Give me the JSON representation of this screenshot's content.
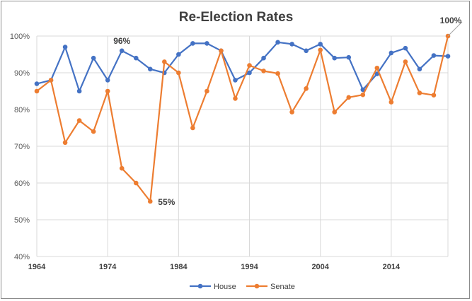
{
  "chart_data": {
    "type": "line",
    "title": "Re-Election Rates",
    "xlabel": "",
    "ylabel": "",
    "x_ticks": [
      "1964",
      "1974",
      "1984",
      "1994",
      "2004",
      "2014"
    ],
    "y_ticks": [
      "100%",
      "90%",
      "80%",
      "70%",
      "60%",
      "50%",
      "40%"
    ],
    "xlim": [
      1964,
      2022
    ],
    "ylim": [
      40,
      100
    ],
    "grid": true,
    "legend": "bottom",
    "x": [
      1964,
      1966,
      1968,
      1970,
      1972,
      1974,
      1976,
      1978,
      1980,
      1982,
      1984,
      1986,
      1988,
      1990,
      1992,
      1994,
      1996,
      1998,
      2000,
      2002,
      2004,
      2006,
      2008,
      2010,
      2012,
      2014,
      2016,
      2018,
      2020,
      2022
    ],
    "series": [
      {
        "name": "House",
        "color": "#4472c4",
        "values": [
          87,
          88,
          97,
          85,
          94,
          88,
          96,
          94,
          91,
          90,
          95,
          98,
          98,
          96,
          88,
          90,
          94,
          98.3,
          97.8,
          96,
          97.8,
          94,
          94.2,
          85.4,
          89.7,
          95.4,
          96.7,
          91,
          94.7,
          94.5
        ]
      },
      {
        "name": "Senate",
        "color": "#ed7d31",
        "values": [
          85,
          88,
          71,
          77,
          74,
          85,
          64,
          60,
          55,
          93,
          90,
          75,
          85,
          96,
          83,
          92,
          90.5,
          89.8,
          79.3,
          85.7,
          96.2,
          79.3,
          83.3,
          84,
          91.3,
          82,
          93,
          84.5,
          83.9,
          100
        ]
      }
    ],
    "annotations": [
      {
        "text": "96%",
        "series": "House",
        "x": 1976
      },
      {
        "text": "55%",
        "series": "Senate",
        "x": 1980
      },
      {
        "text": "100%",
        "series": "Senate",
        "x": 2022
      }
    ]
  }
}
